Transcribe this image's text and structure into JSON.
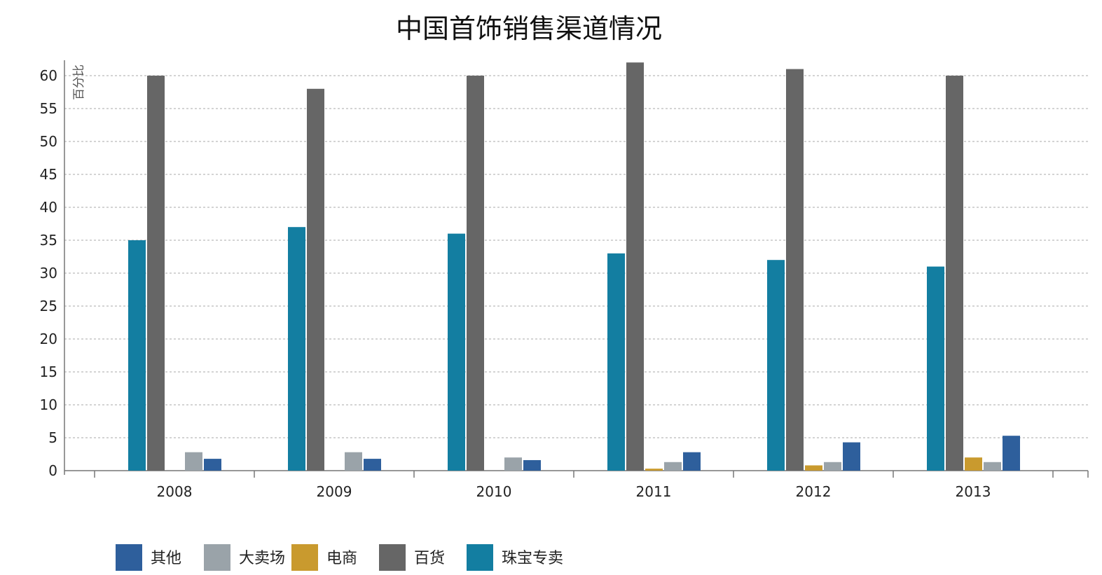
{
  "chart_data": {
    "type": "bar",
    "title": "中国首饰销售渠道情况",
    "ylabel": "百分比",
    "xlabel": "",
    "categories": [
      "2008",
      "2009",
      "2010",
      "2011",
      "2012",
      "2013"
    ],
    "ylim": [
      0,
      62
    ],
    "yticks": [
      0,
      5,
      10,
      15,
      20,
      25,
      30,
      35,
      40,
      45,
      50,
      55,
      60
    ],
    "grid": true,
    "legend_position": "bottom",
    "series": [
      {
        "name": "珠宝专卖",
        "color": "#137ea1",
        "values": [
          35,
          37,
          36,
          33,
          32,
          31
        ]
      },
      {
        "name": "百货",
        "color": "#666666",
        "values": [
          60,
          58,
          60,
          62,
          61,
          60
        ]
      },
      {
        "name": "电商",
        "color": "#c99a2e",
        "values": [
          0,
          0,
          0,
          0.3,
          0.8,
          2
        ]
      },
      {
        "name": "大卖场",
        "color": "#9aa3a9",
        "values": [
          2.8,
          2.8,
          2,
          1.3,
          1.3,
          1.3
        ]
      },
      {
        "name": "其他",
        "color": "#2e5f9c",
        "values": [
          1.8,
          1.8,
          1.6,
          2.8,
          4.3,
          5.3
        ]
      }
    ],
    "legend_order": [
      "其他",
      "大卖场",
      "电商",
      "百货",
      "珠宝专卖"
    ]
  }
}
